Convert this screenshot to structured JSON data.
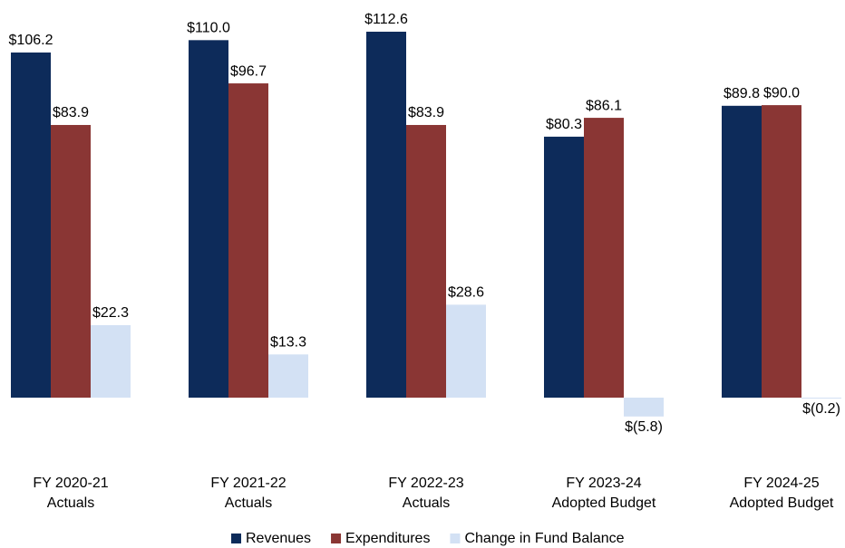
{
  "chart_data": {
    "type": "bar",
    "categories": [
      "FY 2020-21\nActuals",
      "FY 2021-22\nActuals",
      "FY 2022-23\nActuals",
      "FY 2023-24\nAdopted Budget",
      "FY 2024-25\nAdopted Budget"
    ],
    "series": [
      {
        "name": "Revenues",
        "color": "#0d2b5a",
        "values": [
          106.2,
          110.0,
          112.6,
          80.3,
          89.8
        ],
        "value_labels": [
          "$106.2",
          "$110.0",
          "$112.6",
          "$80.3",
          "$89.8"
        ]
      },
      {
        "name": "Expenditures",
        "color": "#8a3634",
        "values": [
          83.9,
          96.7,
          83.9,
          86.1,
          90.0
        ],
        "value_labels": [
          "$83.9",
          "$96.7",
          "$83.9",
          "$86.1",
          "$90.0"
        ]
      },
      {
        "name": "Change in Fund Balance",
        "color": "#d3e1f4",
        "values": [
          22.3,
          13.3,
          28.6,
          -5.8,
          -0.2
        ],
        "value_labels": [
          "$22.3",
          "$13.3",
          "$28.6",
          "$(5.8)",
          "$(0.2)"
        ]
      }
    ],
    "legend": "bottom"
  }
}
